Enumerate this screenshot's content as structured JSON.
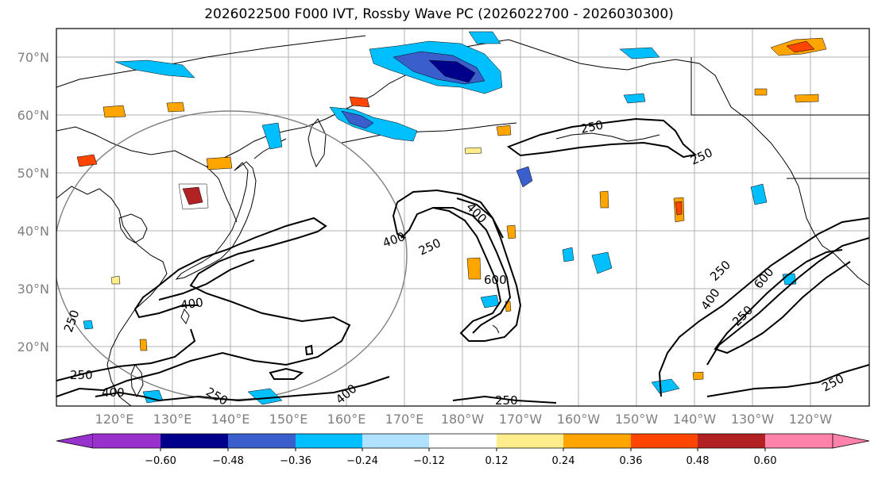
{
  "title": "2026022500 F000 IVT, Rossby Wave PC (2026022700 - 2026030300)",
  "lat_labels": [
    "70°N",
    "60°N",
    "50°N",
    "40°N",
    "30°N",
    "20°N"
  ],
  "lon_labels": [
    "120°E",
    "130°E",
    "140°E",
    "150°E",
    "160°E",
    "170°E",
    "180°W",
    "170°W",
    "160°W",
    "150°W",
    "140°W",
    "130°W",
    "120°W"
  ],
  "colorbar": {
    "ticks": [
      "−0.60",
      "−0.48",
      "−0.36",
      "−0.24",
      "−0.12",
      "0.12",
      "0.24",
      "0.36",
      "0.48",
      "0.60"
    ],
    "colors": [
      "#9932cc",
      "#00008b",
      "#3a5fcd",
      "#00bfff",
      "#b0e2ff",
      "#ffffff",
      "#ffec8b",
      "#ffa500",
      "#ff4500",
      "#b22222",
      "#ff82ab"
    ]
  },
  "contour_labels": [
    {
      "text": "250"
    },
    {
      "text": "250"
    },
    {
      "text": "400"
    },
    {
      "text": "250"
    },
    {
      "text": "400"
    },
    {
      "text": "600"
    },
    {
      "text": "400"
    },
    {
      "text": "250"
    },
    {
      "text": "250"
    },
    {
      "text": "250"
    },
    {
      "text": "400"
    },
    {
      "text": "250"
    },
    {
      "text": "600"
    },
    {
      "text": "250"
    },
    {
      "text": "250"
    },
    {
      "text": "400"
    },
    {
      "text": "400"
    },
    {
      "text": "250"
    }
  ],
  "colors": {
    "land_line": "#000000",
    "grid": "#b0b0b0",
    "circle": "#808080",
    "frame": "#000000"
  }
}
